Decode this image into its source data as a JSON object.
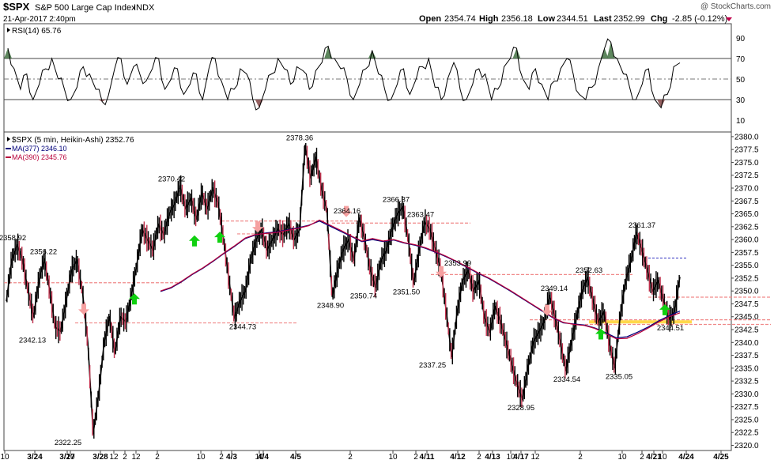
{
  "header": {
    "symbol": "$SPX",
    "name": "S&P 500 Large Cap Index",
    "exchange": "INDX",
    "date": "21-Apr-2017 2:40pm",
    "watermark": "@ StockCharts.com",
    "ohlc_labels": {
      "open": "Open",
      "high": "High",
      "low": "Low",
      "last": "Last",
      "chg": "Chg"
    },
    "open": "2354.74",
    "high": "2356.18",
    "low": "2344.51",
    "last": "2352.99",
    "chg": "-2.85 (-0.12%)"
  },
  "rsi_panel": {
    "label": "RSI(14) 65.76",
    "levels": [
      90,
      70,
      50,
      30,
      10
    ],
    "colors": {
      "line": "#000000",
      "overbought": "#4c7a4c",
      "oversold": "#8a5050"
    }
  },
  "price_panel": {
    "label": "$SPX (5 min, Heikin-Ashi) 2352.76",
    "legend": [
      {
        "label": "MA(377) 2346.10",
        "color": "#00007a"
      },
      {
        "label": "MA(390) 2345.76",
        "color": "#b8003a"
      }
    ]
  },
  "chart_data": {
    "type": "line",
    "ylim": [
      2319,
      2381
    ],
    "y_ticks": [
      "2320.0",
      "2322.5",
      "2325.0",
      "2327.5",
      "2330.0",
      "2332.5",
      "2335.0",
      "2337.5",
      "2340.0",
      "2342.5",
      "2345.0",
      "2347.5",
      "2350.0",
      "2352.5",
      "2355.0",
      "2357.5",
      "2360.0",
      "2362.5",
      "2365.0",
      "2367.5",
      "2370.0",
      "2372.5",
      "2375.0",
      "2377.5",
      "2380.0"
    ],
    "x_ticks": [
      {
        "label": "10",
        "bold": false
      },
      {
        "label": "3/24",
        "bold": true
      },
      {
        "label": "10",
        "bold": false
      },
      {
        "label": "3/27",
        "bold": true
      },
      {
        "label": "3/28",
        "bold": true
      },
      {
        "label": "12",
        "bold": false
      },
      {
        "label": "2",
        "bold": false
      },
      {
        "label": "12",
        "bold": false
      },
      {
        "label": "2",
        "bold": false
      },
      {
        "label": "10",
        "bold": false
      },
      {
        "label": "2",
        "bold": false
      },
      {
        "label": "4/3",
        "bold": true
      },
      {
        "label": "10",
        "bold": false
      },
      {
        "label": "4/4",
        "bold": true
      },
      {
        "label": "4/5",
        "bold": true
      },
      {
        "label": "2",
        "bold": false
      },
      {
        "label": "10",
        "bold": false
      },
      {
        "label": "2",
        "bold": false
      },
      {
        "label": "4/11",
        "bold": true
      },
      {
        "label": "4/12",
        "bold": true
      },
      {
        "label": "2",
        "bold": false
      },
      {
        "label": "4/13",
        "bold": true
      },
      {
        "label": "10",
        "bold": false
      },
      {
        "label": "4/17",
        "bold": true
      },
      {
        "label": "12",
        "bold": false
      },
      {
        "label": "2",
        "bold": false
      },
      {
        "label": "10",
        "bold": false
      },
      {
        "label": "2",
        "bold": false
      },
      {
        "label": "4/21",
        "bold": true
      },
      {
        "label": "10",
        "bold": false
      },
      {
        "label": "4/24",
        "bold": true
      },
      {
        "label": "4/25",
        "bold": true
      }
    ],
    "price_series": [
      2348,
      2356,
      2358.92,
      2356,
      2350,
      2345,
      2352,
      2356.22,
      2350,
      2343,
      2342.13,
      2348,
      2354,
      2356,
      2350,
      2340,
      2322.25,
      2330,
      2340,
      2345,
      2338,
      2345,
      2344,
      2349,
      2355,
      2362,
      2360,
      2358,
      2363,
      2361,
      2365,
      2367,
      2370.42,
      2366,
      2368,
      2364,
      2369,
      2366,
      2370,
      2367,
      2360,
      2352,
      2344.73,
      2348,
      2350,
      2356,
      2360,
      2362,
      2358,
      2360,
      2362,
      2361,
      2363,
      2360,
      2362,
      2378.36,
      2372,
      2376,
      2370,
      2366,
      2348.9,
      2354,
      2358,
      2360,
      2356,
      2364.16,
      2360,
      2354,
      2350.74,
      2356,
      2358,
      2362,
      2365,
      2366.37,
      2360,
      2351.5,
      2358,
      2363.47,
      2362,
      2358,
      2353.99,
      2346,
      2337.25,
      2346,
      2352,
      2354,
      2350,
      2352,
      2345,
      2342,
      2347,
      2344,
      2340,
      2336,
      2332,
      2328.95,
      2335,
      2340,
      2342,
      2344,
      2349.14,
      2345,
      2340,
      2334.54,
      2340,
      2345,
      2350,
      2352.63,
      2348,
      2344,
      2346,
      2340,
      2335.05,
      2345,
      2352,
      2356,
      2361.37,
      2358,
      2354,
      2350,
      2352,
      2348,
      2344.51,
      2346,
      2352.76
    ],
    "ma377": [
      2349.9,
      2350.6,
      2351.8,
      2353.2,
      2354.4,
      2355.8,
      2357.3,
      2358.7,
      2360.2,
      2360.9,
      2361.3,
      2361.5,
      2361.9,
      2362.3,
      2362.8,
      2363.6,
      2362.6,
      2361.6,
      2360.6,
      2359.6,
      2360.0,
      2359.6,
      2359.9,
      2359.3,
      2358.9,
      2358.3,
      2357.5,
      2356.6,
      2355.6,
      2354.5,
      2353.4,
      2352.4,
      2351.2,
      2350.0,
      2348.7,
      2347.4,
      2346.1,
      2344.8,
      2343.8,
      2343.6,
      2343.4,
      2342.8,
      2341.9,
      2340.9,
      2341.1,
      2342.0,
      2343.0,
      2344.2,
      2345.2,
      2346.1
    ],
    "ma390": [
      2350.0,
      2350.7,
      2351.9,
      2353.3,
      2354.5,
      2355.9,
      2357.4,
      2358.8,
      2360.3,
      2361.0,
      2361.2,
      2361.4,
      2361.8,
      2362.2,
      2362.7,
      2363.8,
      2362.8,
      2361.8,
      2360.7,
      2359.7,
      2360.2,
      2359.7,
      2360.0,
      2359.4,
      2359.0,
      2358.4,
      2357.6,
      2356.7,
      2355.7,
      2354.6,
      2353.5,
      2352.5,
      2351.3,
      2350.1,
      2348.8,
      2347.5,
      2346.2,
      2344.9,
      2343.9,
      2343.5,
      2343.3,
      2342.7,
      2341.7,
      2340.7,
      2340.8,
      2341.7,
      2342.8,
      2344.0,
      2345.0,
      2345.76
    ],
    "labels": [
      {
        "text": "2358.92",
        "value": 2358.92
      },
      {
        "text": "2356.22",
        "value": 2356.22
      },
      {
        "text": "2342.13",
        "value": 2342.13
      },
      {
        "text": "2322.25",
        "value": 2322.25
      },
      {
        "text": "2370.42",
        "value": 2370.42
      },
      {
        "text": "2344.73",
        "value": 2344.73
      },
      {
        "text": "2378.36",
        "value": 2378.36
      },
      {
        "text": "2348.90",
        "value": 2348.9
      },
      {
        "text": "2364.16",
        "value": 2364.16
      },
      {
        "text": "2350.74",
        "value": 2350.74
      },
      {
        "text": "2366.37",
        "value": 2366.37
      },
      {
        "text": "2363.47",
        "value": 2363.47
      },
      {
        "text": "2351.50",
        "value": 2351.5
      },
      {
        "text": "2353.99",
        "value": 2353.99
      },
      {
        "text": "2337.25",
        "value": 2337.25
      },
      {
        "text": "2328.95",
        "value": 2328.95
      },
      {
        "text": "2349.14",
        "value": 2349.14
      },
      {
        "text": "2334.54",
        "value": 2334.54
      },
      {
        "text": "2352.63",
        "value": 2352.63
      },
      {
        "text": "2335.05",
        "value": 2335.05
      },
      {
        "text": "2361.37",
        "value": 2361.37
      },
      {
        "text": "2344.51",
        "value": 2344.51
      }
    ],
    "support_resistance": [
      2351.6,
      2343.8,
      2363.6,
      2363.2,
      2361.1,
      2353.2,
      2344.4,
      2348.8,
      2343.5
    ],
    "highlight_band": 2344.0,
    "arrows_up": [
      2348.3,
      2359.6,
      2360.3,
      2341.5,
      2346.2
    ],
    "arrows_down": [
      2346.6,
      2362.6,
      2365.6,
      2353.9,
      2346.4
    ],
    "rsi": [
      80,
      60,
      40,
      55,
      30,
      45,
      60,
      70,
      50,
      40,
      30,
      42,
      62,
      55,
      40,
      28,
      34,
      60,
      70,
      45,
      62,
      55,
      48,
      60,
      70,
      40,
      50,
      60,
      35,
      45,
      55,
      30,
      60,
      70,
      48,
      30,
      40,
      60,
      55,
      30,
      22,
      40,
      55,
      70,
      60,
      45,
      62,
      58,
      40,
      58,
      66,
      82,
      70,
      60,
      50,
      30,
      45,
      60,
      78,
      55,
      40,
      30,
      45,
      60,
      35,
      50,
      62,
      70,
      42,
      30,
      50,
      66,
      40,
      30,
      45,
      60,
      55,
      30,
      40,
      62,
      70,
      80,
      50,
      40,
      60,
      45,
      30,
      48,
      60,
      70,
      55,
      35,
      30,
      42,
      60,
      80,
      86,
      70,
      55,
      42,
      30,
      45,
      60,
      30,
      22,
      35,
      62,
      65.76
    ],
    "colors": {
      "price": "#000000",
      "down_candle": "#c0304c",
      "ma377": "#00007a",
      "ma390": "#b8003a",
      "sr_line": "#f08a8a",
      "highlight": "#ffd84a",
      "arrow_up": "#10d010",
      "arrow_down": "#f5a0a0"
    }
  }
}
